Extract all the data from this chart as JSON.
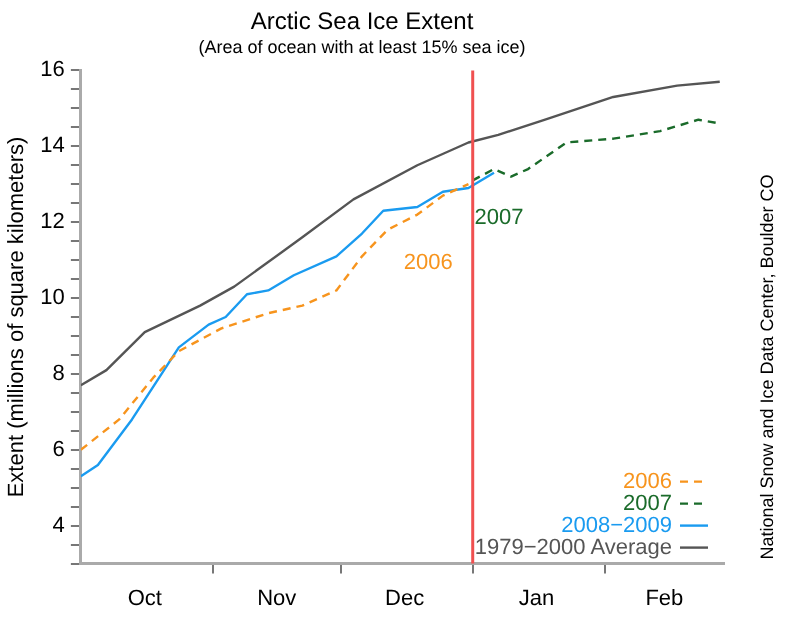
{
  "chart_data": {
    "type": "line",
    "title": "Arctic Sea Ice Extent",
    "subtitle": "(Area of ocean with at least 15% sea ice)",
    "ylabel": "Extent (millions of square kilometers)",
    "xlim": [
      "2008-10-01",
      "2009-03-01"
    ],
    "xticks": [
      {
        "value": "2008-10-16",
        "label": "Oct"
      },
      {
        "value": "2008-11-01",
        "label": null
      },
      {
        "value": "2008-11-16",
        "label": "Nov"
      },
      {
        "value": "2008-12-01",
        "label": null
      },
      {
        "value": "2008-12-16",
        "label": "Dec"
      },
      {
        "value": "2009-01-01",
        "label": null
      },
      {
        "value": "2009-01-16",
        "label": "Jan"
      },
      {
        "value": "2009-02-01",
        "label": null
      },
      {
        "value": "2009-02-15",
        "label": "Feb"
      }
    ],
    "ylim": [
      3,
      16
    ],
    "yticks": [
      {
        "value": 3,
        "label": null
      },
      {
        "value": 3.5,
        "label": null
      },
      4,
      {
        "value": 4.5,
        "label": null
      },
      {
        "value": 5,
        "label": null
      },
      {
        "value": 5.5,
        "label": null
      },
      6,
      {
        "value": 6.5,
        "label": null
      },
      {
        "value": 7,
        "label": null
      },
      {
        "value": 7.5,
        "label": null
      },
      8,
      {
        "value": 8.5,
        "label": null
      },
      {
        "value": 9,
        "label": null
      },
      {
        "value": 9.5,
        "label": null
      },
      10,
      {
        "value": 10.5,
        "label": null
      },
      {
        "value": 11,
        "label": null
      },
      {
        "value": 11.5,
        "label": null
      },
      12,
      {
        "value": 12.5,
        "label": null
      },
      {
        "value": 13,
        "label": null
      },
      {
        "value": 13.5,
        "label": null
      },
      14,
      {
        "value": 14.5,
        "label": null
      },
      {
        "value": 15,
        "label": null
      },
      {
        "value": 15.5,
        "label": null
      },
      16
    ],
    "grid": false,
    "legend": "bottom right",
    "marker": "none",
    "series": [
      {
        "name": "2006",
        "color": "#f7941d",
        "line_style": "dashed",
        "x": [
          "2008-10-01",
          "2008-10-10",
          "2008-10-18",
          "2008-10-24",
          "2008-11-03",
          "2008-11-14",
          "2008-11-22",
          "2008-11-30",
          "2008-12-06",
          "2008-12-12",
          "2008-12-19",
          "2008-12-25",
          "2008-12-31"
        ],
        "values": [
          6.0,
          6.8,
          7.9,
          8.6,
          9.2,
          9.6,
          9.8,
          10.2,
          11.1,
          11.8,
          12.2,
          12.7,
          13.0
        ]
      },
      {
        "name": "2007",
        "color": "#1a6b2a",
        "line_style": "dashed",
        "x": [
          "2009-01-01",
          "2009-01-06",
          "2009-01-10",
          "2009-01-14",
          "2009-01-23",
          "2009-02-03",
          "2009-02-14",
          "2009-02-23",
          "2009-02-28"
        ],
        "values": [
          13.1,
          13.4,
          13.2,
          13.4,
          14.1,
          14.2,
          14.4,
          14.7,
          14.6
        ]
      },
      {
        "name": "2008−2009",
        "color": "#1a9bf0",
        "line_style": "solid",
        "x": [
          "2008-10-01",
          "2008-10-05",
          "2008-10-13",
          "2008-10-24",
          "2008-10-31",
          "2008-11-04",
          "2008-11-09",
          "2008-11-14",
          "2008-11-20",
          "2008-11-30",
          "2008-12-06",
          "2008-12-11",
          "2008-12-19",
          "2008-12-25",
          "2008-12-31",
          "2009-01-06"
        ],
        "values": [
          5.3,
          5.6,
          6.8,
          8.7,
          9.3,
          9.5,
          10.1,
          10.2,
          10.6,
          11.1,
          11.7,
          12.3,
          12.4,
          12.8,
          12.9,
          13.3
        ]
      },
      {
        "name": "1979−2000 Average",
        "color": "#555555",
        "line_style": "solid",
        "x": [
          "2008-10-01",
          "2008-10-07",
          "2008-10-16",
          "2008-10-29",
          "2008-11-06",
          "2008-11-22",
          "2008-12-04",
          "2008-12-19",
          "2008-12-31",
          "2009-01-07",
          "2009-01-18",
          "2009-02-03",
          "2009-02-18",
          "2009-02-28"
        ],
        "values": [
          7.7,
          8.1,
          9.1,
          9.8,
          10.3,
          11.6,
          12.6,
          13.5,
          14.1,
          14.3,
          14.7,
          15.3,
          15.6,
          15.7
        ]
      }
    ],
    "ref_lines": [
      {
        "axis": "x",
        "value": "2009-01-01",
        "color": "#f05050",
        "line_style": "solid"
      }
    ],
    "annotations": [
      "2006",
      "2007",
      "National Snow and Ice Data Center, Boulder CO"
    ]
  }
}
